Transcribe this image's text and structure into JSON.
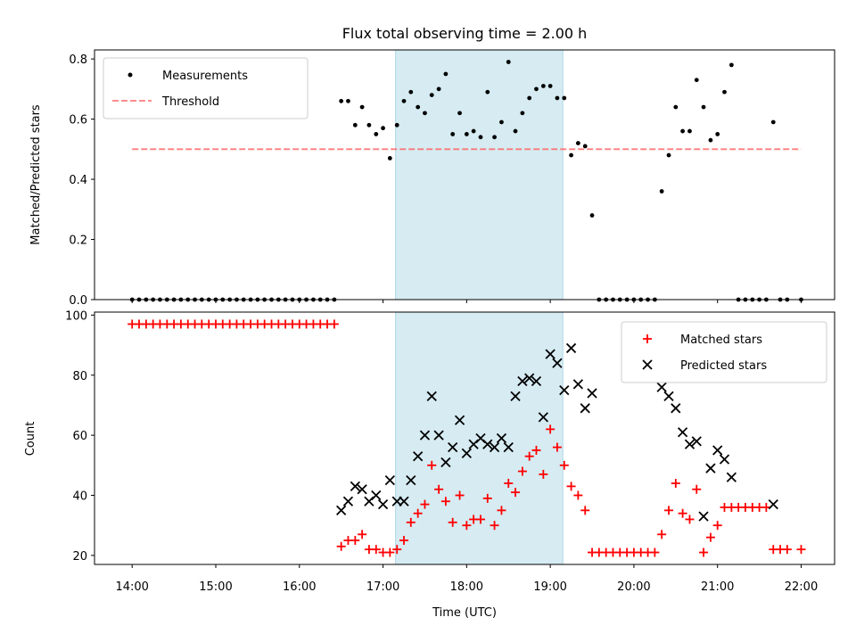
{
  "chart_data": [
    {
      "type": "scatter",
      "title": "Flux total observing time = 2.00 h",
      "ylabel": "Matched/Predicted stars",
      "xlim": [
        13.55,
        22.4
      ],
      "ylim": [
        0,
        0.83
      ],
      "yticks": [
        0.0,
        0.2,
        0.4,
        0.6,
        0.8
      ],
      "ytick_labels": [
        "0.0",
        "0.2",
        "0.4",
        "0.6",
        "0.8"
      ],
      "highlight_span": [
        17.15,
        19.15
      ],
      "highlight_color": "#add8e6",
      "legend": {
        "position": "top-left",
        "entries": [
          "Measurements",
          "Threshold"
        ]
      },
      "threshold": {
        "name": "Threshold",
        "y": 0.5,
        "x_range": [
          14.0,
          22.0
        ],
        "color": "#ff6666"
      },
      "series": [
        {
          "name": "Measurements",
          "color": "#000000",
          "marker": "dot",
          "points": [
            [
              14.0,
              0
            ],
            [
              14.083,
              0
            ],
            [
              14.167,
              0
            ],
            [
              14.25,
              0
            ],
            [
              14.333,
              0
            ],
            [
              14.417,
              0
            ],
            [
              14.5,
              0
            ],
            [
              14.583,
              0
            ],
            [
              14.667,
              0
            ],
            [
              14.75,
              0
            ],
            [
              14.833,
              0
            ],
            [
              14.917,
              0
            ],
            [
              15.0,
              0
            ],
            [
              15.083,
              0
            ],
            [
              15.167,
              0
            ],
            [
              15.25,
              0
            ],
            [
              15.333,
              0
            ],
            [
              15.417,
              0
            ],
            [
              15.5,
              0
            ],
            [
              15.583,
              0
            ],
            [
              15.667,
              0
            ],
            [
              15.75,
              0
            ],
            [
              15.833,
              0
            ],
            [
              15.917,
              0
            ],
            [
              16.0,
              0
            ],
            [
              16.083,
              0
            ],
            [
              16.167,
              0
            ],
            [
              16.25,
              0
            ],
            [
              16.333,
              0
            ],
            [
              16.417,
              0
            ],
            [
              16.5,
              0.66
            ],
            [
              16.583,
              0.66
            ],
            [
              16.667,
              0.58
            ],
            [
              16.75,
              0.64
            ],
            [
              16.833,
              0.58
            ],
            [
              16.917,
              0.55
            ],
            [
              17.0,
              0.57
            ],
            [
              17.083,
              0.47
            ],
            [
              17.167,
              0.58
            ],
            [
              17.25,
              0.66
            ],
            [
              17.333,
              0.69
            ],
            [
              17.417,
              0.64
            ],
            [
              17.5,
              0.62
            ],
            [
              17.583,
              0.68
            ],
            [
              17.667,
              0.7
            ],
            [
              17.75,
              0.75
            ],
            [
              17.833,
              0.55
            ],
            [
              17.917,
              0.62
            ],
            [
              18.0,
              0.55
            ],
            [
              18.083,
              0.56
            ],
            [
              18.167,
              0.54
            ],
            [
              18.25,
              0.69
            ],
            [
              18.333,
              0.54
            ],
            [
              18.417,
              0.59
            ],
            [
              18.5,
              0.79
            ],
            [
              18.583,
              0.56
            ],
            [
              18.667,
              0.62
            ],
            [
              18.75,
              0.67
            ],
            [
              18.833,
              0.7
            ],
            [
              18.917,
              0.71
            ],
            [
              19.0,
              0.71
            ],
            [
              19.083,
              0.67
            ],
            [
              19.167,
              0.67
            ],
            [
              19.25,
              0.48
            ],
            [
              19.333,
              0.52
            ],
            [
              19.417,
              0.51
            ],
            [
              19.5,
              0.28
            ],
            [
              19.583,
              0
            ],
            [
              19.667,
              0
            ],
            [
              19.75,
              0
            ],
            [
              19.833,
              0
            ],
            [
              19.917,
              0
            ],
            [
              20.0,
              0
            ],
            [
              20.083,
              0
            ],
            [
              20.167,
              0
            ],
            [
              20.25,
              0
            ],
            [
              20.333,
              0.36
            ],
            [
              20.417,
              0.48
            ],
            [
              20.5,
              0.64
            ],
            [
              20.583,
              0.56
            ],
            [
              20.667,
              0.56
            ],
            [
              20.75,
              0.73
            ],
            [
              20.833,
              0.64
            ],
            [
              20.917,
              0.53
            ],
            [
              21.0,
              0.55
            ],
            [
              21.083,
              0.69
            ],
            [
              21.167,
              0.78
            ],
            [
              21.25,
              0
            ],
            [
              21.333,
              0
            ],
            [
              21.417,
              0
            ],
            [
              21.5,
              0
            ],
            [
              21.583,
              0
            ],
            [
              21.667,
              0.59
            ],
            [
              21.75,
              0
            ],
            [
              21.833,
              0
            ],
            [
              22.0,
              0
            ]
          ]
        }
      ]
    },
    {
      "type": "scatter",
      "xlabel": "Time (UTC)",
      "ylabel": "Count",
      "xlim": [
        13.55,
        22.4
      ],
      "ylim": [
        17,
        101
      ],
      "xticks": [
        14,
        15,
        16,
        17,
        18,
        19,
        20,
        21,
        22
      ],
      "xtick_labels": [
        "14:00",
        "15:00",
        "16:00",
        "17:00",
        "18:00",
        "19:00",
        "20:00",
        "21:00",
        "22:00"
      ],
      "yticks": [
        20,
        40,
        60,
        80,
        100
      ],
      "ytick_labels": [
        "20",
        "40",
        "60",
        "80",
        "100"
      ],
      "highlight_span": [
        17.15,
        19.15
      ],
      "highlight_color": "#add8e6",
      "legend": {
        "position": "top-right",
        "entries": [
          "Matched stars",
          "Predicted stars"
        ]
      },
      "series": [
        {
          "name": "Matched stars",
          "color": "#ff0000",
          "marker": "plus",
          "points": [
            [
              14.0,
              97
            ],
            [
              14.083,
              97
            ],
            [
              14.167,
              97
            ],
            [
              14.25,
              97
            ],
            [
              14.333,
              97
            ],
            [
              14.417,
              97
            ],
            [
              14.5,
              97
            ],
            [
              14.583,
              97
            ],
            [
              14.667,
              97
            ],
            [
              14.75,
              97
            ],
            [
              14.833,
              97
            ],
            [
              14.917,
              97
            ],
            [
              15.0,
              97
            ],
            [
              15.083,
              97
            ],
            [
              15.167,
              97
            ],
            [
              15.25,
              97
            ],
            [
              15.333,
              97
            ],
            [
              15.417,
              97
            ],
            [
              15.5,
              97
            ],
            [
              15.583,
              97
            ],
            [
              15.667,
              97
            ],
            [
              15.75,
              97
            ],
            [
              15.833,
              97
            ],
            [
              15.917,
              97
            ],
            [
              16.0,
              97
            ],
            [
              16.083,
              97
            ],
            [
              16.167,
              97
            ],
            [
              16.25,
              97
            ],
            [
              16.333,
              97
            ],
            [
              16.417,
              97
            ],
            [
              16.5,
              23
            ],
            [
              16.583,
              25
            ],
            [
              16.667,
              25
            ],
            [
              16.75,
              27
            ],
            [
              16.833,
              22
            ],
            [
              16.917,
              22
            ],
            [
              17.0,
              21
            ],
            [
              17.083,
              21
            ],
            [
              17.167,
              22
            ],
            [
              17.25,
              25
            ],
            [
              17.333,
              31
            ],
            [
              17.417,
              34
            ],
            [
              17.5,
              37
            ],
            [
              17.583,
              50
            ],
            [
              17.667,
              42
            ],
            [
              17.75,
              38
            ],
            [
              17.833,
              31
            ],
            [
              17.917,
              40
            ],
            [
              18.0,
              30
            ],
            [
              18.083,
              32
            ],
            [
              18.167,
              32
            ],
            [
              18.25,
              39
            ],
            [
              18.333,
              30
            ],
            [
              18.417,
              35
            ],
            [
              18.5,
              44
            ],
            [
              18.583,
              41
            ],
            [
              18.667,
              48
            ],
            [
              18.75,
              53
            ],
            [
              18.833,
              55
            ],
            [
              18.917,
              47
            ],
            [
              19.0,
              62
            ],
            [
              19.083,
              56
            ],
            [
              19.167,
              50
            ],
            [
              19.25,
              43
            ],
            [
              19.333,
              40
            ],
            [
              19.417,
              35
            ],
            [
              19.5,
              21
            ],
            [
              19.583,
              21
            ],
            [
              19.667,
              21
            ],
            [
              19.75,
              21
            ],
            [
              19.833,
              21
            ],
            [
              19.917,
              21
            ],
            [
              20.0,
              21
            ],
            [
              20.083,
              21
            ],
            [
              20.167,
              21
            ],
            [
              20.25,
              21
            ],
            [
              20.333,
              27
            ],
            [
              20.417,
              35
            ],
            [
              20.5,
              44
            ],
            [
              20.583,
              34
            ],
            [
              20.667,
              32
            ],
            [
              20.75,
              42
            ],
            [
              20.833,
              21
            ],
            [
              20.917,
              26
            ],
            [
              21.0,
              30
            ],
            [
              21.083,
              36
            ],
            [
              21.167,
              36
            ],
            [
              21.25,
              36
            ],
            [
              21.333,
              36
            ],
            [
              21.417,
              36
            ],
            [
              21.5,
              36
            ],
            [
              21.583,
              36
            ],
            [
              21.667,
              22
            ],
            [
              21.75,
              22
            ],
            [
              21.833,
              22
            ],
            [
              22.0,
              22
            ]
          ]
        },
        {
          "name": "Predicted stars",
          "color": "#000000",
          "marker": "cross",
          "points": [
            [
              16.5,
              35
            ],
            [
              16.583,
              38
            ],
            [
              16.667,
              43
            ],
            [
              16.75,
              42
            ],
            [
              16.833,
              38
            ],
            [
              16.917,
              40
            ],
            [
              17.0,
              37
            ],
            [
              17.083,
              45
            ],
            [
              17.167,
              38
            ],
            [
              17.25,
              38
            ],
            [
              17.333,
              45
            ],
            [
              17.417,
              53
            ],
            [
              17.5,
              60
            ],
            [
              17.583,
              73
            ],
            [
              17.667,
              60
            ],
            [
              17.75,
              51
            ],
            [
              17.833,
              56
            ],
            [
              17.917,
              65
            ],
            [
              18.0,
              54
            ],
            [
              18.083,
              57
            ],
            [
              18.167,
              59
            ],
            [
              18.25,
              57
            ],
            [
              18.333,
              56
            ],
            [
              18.417,
              59
            ],
            [
              18.5,
              56
            ],
            [
              18.583,
              73
            ],
            [
              18.667,
              78
            ],
            [
              18.75,
              79
            ],
            [
              18.833,
              78
            ],
            [
              18.917,
              66
            ],
            [
              19.0,
              87
            ],
            [
              19.083,
              84
            ],
            [
              19.167,
              75
            ],
            [
              19.25,
              89
            ],
            [
              19.333,
              77
            ],
            [
              19.417,
              69
            ],
            [
              19.5,
              74
            ],
            [
              20.333,
              76
            ],
            [
              20.417,
              73
            ],
            [
              20.5,
              69
            ],
            [
              20.583,
              61
            ],
            [
              20.667,
              57
            ],
            [
              20.75,
              58
            ],
            [
              20.833,
              33
            ],
            [
              20.917,
              49
            ],
            [
              21.0,
              55
            ],
            [
              21.083,
              52
            ],
            [
              21.167,
              46
            ],
            [
              21.667,
              37
            ]
          ]
        }
      ]
    }
  ]
}
